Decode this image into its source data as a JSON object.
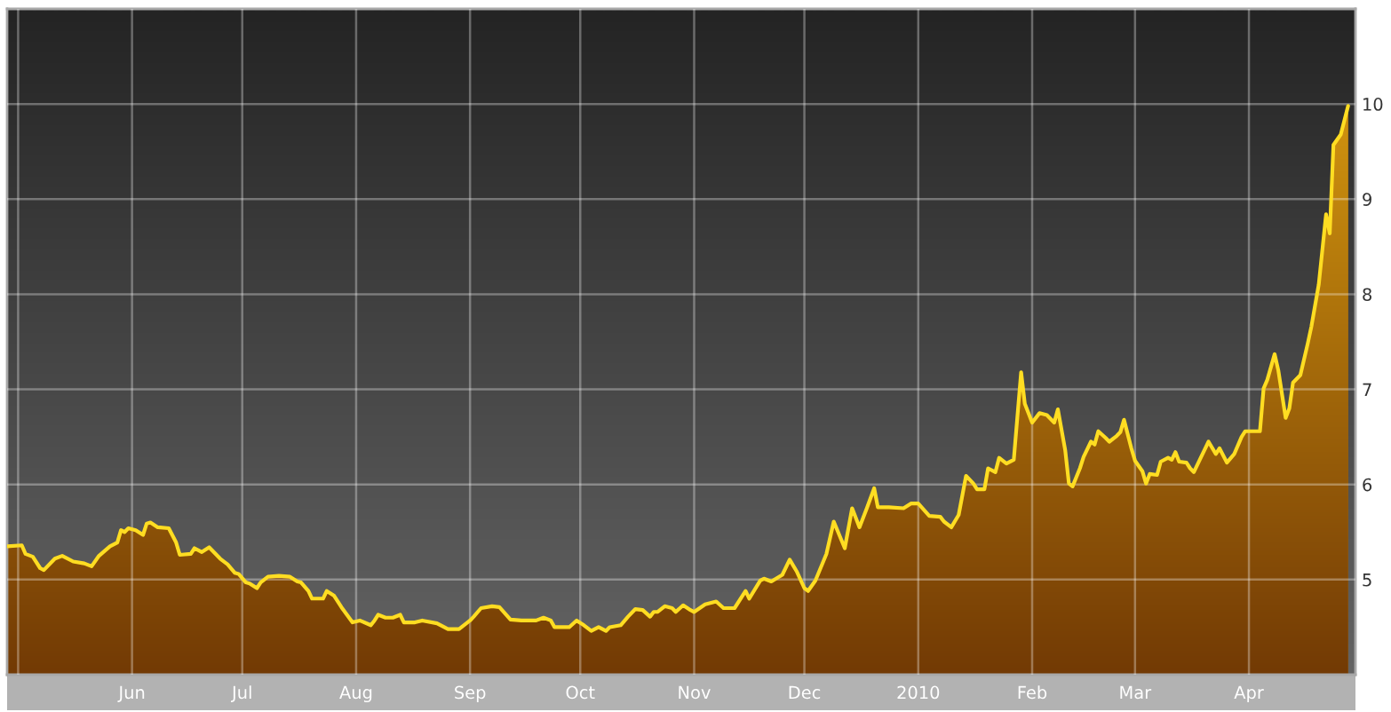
{
  "chart_data": {
    "type": "area",
    "x": [
      "2009-04-28",
      "2009-05-02",
      "2009-05-03",
      "2009-05-05",
      "2009-05-07",
      "2009-05-08",
      "2009-05-11",
      "2009-05-13",
      "2009-05-16",
      "2009-05-19",
      "2009-05-21",
      "2009-05-23",
      "2009-05-26",
      "2009-05-28",
      "2009-05-29",
      "2009-05-30",
      "2009-05-31",
      "2009-06-02",
      "2009-06-04",
      "2009-06-05",
      "2009-06-06",
      "2009-06-08",
      "2009-06-11",
      "2009-06-13",
      "2009-06-14",
      "2009-06-17",
      "2009-06-18",
      "2009-06-20",
      "2009-06-22",
      "2009-06-25",
      "2009-06-27",
      "2009-06-29",
      "2009-06-30",
      "2009-07-02",
      "2009-07-03",
      "2009-07-05",
      "2009-07-06",
      "2009-07-08",
      "2009-07-11",
      "2009-07-14",
      "2009-07-16",
      "2009-07-17",
      "2009-07-19",
      "2009-07-20",
      "2009-07-23",
      "2009-07-24",
      "2009-07-26",
      "2009-07-28",
      "2009-07-31",
      "2009-08-02",
      "2009-08-05",
      "2009-08-06",
      "2009-08-07",
      "2009-08-09",
      "2009-08-11",
      "2009-08-13",
      "2009-08-14",
      "2009-08-17",
      "2009-08-19",
      "2009-08-23",
      "2009-08-26",
      "2009-08-29",
      "2009-09-01",
      "2009-09-02",
      "2009-09-04",
      "2009-09-07",
      "2009-09-09",
      "2009-09-12",
      "2009-09-15",
      "2009-09-19",
      "2009-09-21",
      "2009-09-23",
      "2009-09-24",
      "2009-09-28",
      "2009-09-30",
      "2009-10-02",
      "2009-10-04",
      "2009-10-06",
      "2009-10-08",
      "2009-10-09",
      "2009-10-12",
      "2009-10-14",
      "2009-10-16",
      "2009-10-18",
      "2009-10-20",
      "2009-10-21",
      "2009-10-22",
      "2009-10-24",
      "2009-10-26",
      "2009-10-27",
      "2009-10-29",
      "2009-10-31",
      "2009-11-01",
      "2009-11-04",
      "2009-11-07",
      "2009-11-09",
      "2009-11-12",
      "2009-11-15",
      "2009-11-16",
      "2009-11-19",
      "2009-11-20",
      "2009-11-22",
      "2009-11-25",
      "2009-11-27",
      "2009-11-29",
      "2009-12-01",
      "2009-12-02",
      "2009-12-04",
      "2009-12-07",
      "2009-12-09",
      "2009-12-12",
      "2009-12-14",
      "2009-12-16",
      "2009-12-18",
      "2009-12-20",
      "2009-12-21",
      "2009-12-24",
      "2009-12-28",
      "2009-12-30",
      "2010-01-01",
      "2010-01-04",
      "2010-01-07",
      "2010-01-08",
      "2010-01-10",
      "2010-01-12",
      "2010-01-14",
      "2010-01-16",
      "2010-01-17",
      "2010-01-19",
      "2010-01-20",
      "2010-01-22",
      "2010-01-23",
      "2010-01-25",
      "2010-01-27",
      "2010-01-29",
      "2010-01-30",
      "2010-02-01",
      "2010-02-03",
      "2010-02-05",
      "2010-02-07",
      "2010-02-08",
      "2010-02-10",
      "2010-02-11",
      "2010-02-12",
      "2010-02-14",
      "2010-02-15",
      "2010-02-17",
      "2010-02-18",
      "2010-02-19",
      "2010-02-21",
      "2010-02-22",
      "2010-02-24",
      "2010-02-25",
      "2010-02-26",
      "2010-02-28",
      "2010-03-01",
      "2010-03-03",
      "2010-03-04",
      "2010-03-05",
      "2010-03-07",
      "2010-03-08",
      "2010-03-10",
      "2010-03-11",
      "2010-03-12",
      "2010-03-13",
      "2010-03-15",
      "2010-03-16",
      "2010-03-17",
      "2010-03-19",
      "2010-03-21",
      "2010-03-23",
      "2010-03-24",
      "2010-03-26",
      "2010-03-28",
      "2010-03-30",
      "2010-03-31",
      "2010-04-03",
      "2010-04-04",
      "2010-04-05",
      "2010-04-06",
      "2010-04-08",
      "2010-04-09",
      "2010-04-11",
      "2010-04-12",
      "2010-04-13",
      "2010-04-15",
      "2010-04-17",
      "2010-04-18",
      "2010-04-20",
      "2010-04-22",
      "2010-04-23",
      "2010-04-24",
      "2010-04-26",
      "2010-04-28"
    ],
    "series": [
      {
        "color": "#ffdd22",
        "values": [
          5.35,
          5.36,
          5.27,
          5.24,
          5.12,
          5.1,
          5.22,
          5.25,
          5.19,
          5.17,
          5.14,
          5.25,
          5.35,
          5.39,
          5.52,
          5.5,
          5.54,
          5.52,
          5.47,
          5.59,
          5.6,
          5.55,
          5.54,
          5.39,
          5.26,
          5.27,
          5.33,
          5.29,
          5.34,
          5.22,
          5.16,
          5.07,
          5.06,
          4.97,
          4.96,
          4.91,
          4.97,
          5.03,
          5.04,
          5.03,
          4.98,
          4.97,
          4.88,
          4.8,
          4.8,
          4.88,
          4.83,
          4.71,
          4.55,
          4.57,
          4.52,
          4.57,
          4.63,
          4.6,
          4.6,
          4.63,
          4.55,
          4.55,
          4.57,
          4.54,
          4.48,
          4.48,
          4.57,
          4.61,
          4.7,
          4.72,
          4.71,
          4.58,
          4.57,
          4.57,
          4.6,
          4.57,
          4.5,
          4.5,
          4.57,
          4.52,
          4.46,
          4.5,
          4.46,
          4.5,
          4.52,
          4.61,
          4.69,
          4.68,
          4.61,
          4.66,
          4.66,
          4.72,
          4.7,
          4.66,
          4.73,
          4.68,
          4.66,
          4.74,
          4.77,
          4.7,
          4.7,
          4.88,
          4.8,
          4.99,
          5.01,
          4.98,
          5.05,
          5.21,
          5.08,
          4.91,
          4.88,
          4.99,
          5.27,
          5.61,
          5.33,
          5.75,
          5.55,
          5.75,
          5.96,
          5.76,
          5.76,
          5.75,
          5.8,
          5.8,
          5.67,
          5.66,
          5.61,
          5.55,
          5.68,
          6.09,
          6.01,
          5.95,
          5.95,
          6.17,
          6.13,
          6.28,
          6.22,
          6.26,
          7.18,
          6.85,
          6.65,
          6.75,
          6.73,
          6.65,
          6.79,
          6.36,
          6.01,
          5.98,
          6.17,
          6.29,
          6.45,
          6.42,
          6.56,
          6.49,
          6.45,
          6.51,
          6.55,
          6.68,
          6.38,
          6.25,
          6.14,
          6.01,
          6.11,
          6.1,
          6.24,
          6.28,
          6.26,
          6.34,
          6.24,
          6.23,
          6.17,
          6.13,
          6.29,
          6.45,
          6.32,
          6.38,
          6.23,
          6.32,
          6.5,
          6.56,
          6.56,
          6.56,
          7.01,
          7.1,
          7.37,
          7.2,
          6.7,
          6.8,
          7.07,
          7.15,
          7.48,
          7.66,
          8.1,
          8.84,
          8.64,
          9.57,
          9.68,
          9.98
        ]
      }
    ],
    "xlim": [
      "2009-04-28",
      "2010-04-30"
    ],
    "xticks": [
      {
        "value": "2009-05-01",
        "label": null
      },
      {
        "value": "2009-06-01",
        "label": "Jun"
      },
      {
        "value": "2009-07-01",
        "label": "Jul"
      },
      {
        "value": "2009-08-01",
        "label": "Aug"
      },
      {
        "value": "2009-09-01",
        "label": "Sep"
      },
      {
        "value": "2009-10-01",
        "label": "Oct"
      },
      {
        "value": "2009-11-01",
        "label": "Nov"
      },
      {
        "value": "2009-12-01",
        "label": "Dec"
      },
      {
        "value": "2010-01-01",
        "label": "2010"
      },
      {
        "value": "2010-02-01",
        "label": "Feb"
      },
      {
        "value": "2010-03-01",
        "label": "Mar"
      },
      {
        "value": "2010-04-01",
        "label": "Apr"
      }
    ],
    "ylim": [
      4,
      11
    ],
    "yticks": [
      5,
      6,
      7,
      8,
      9,
      10
    ],
    "grid": true
  }
}
